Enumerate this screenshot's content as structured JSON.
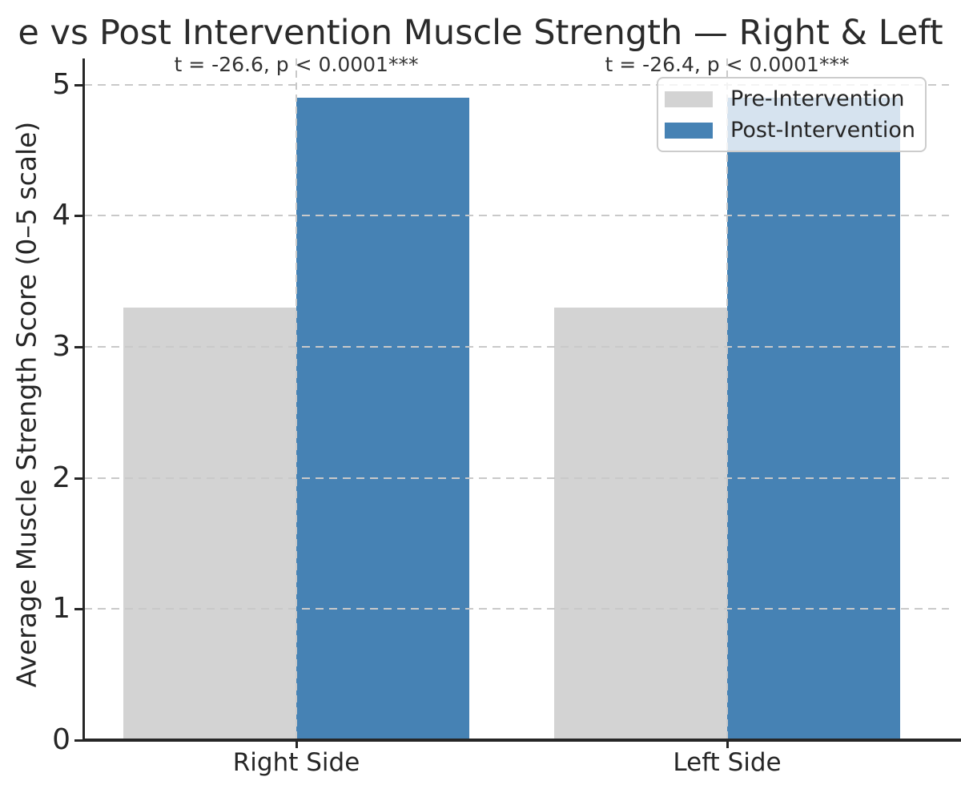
{
  "chart_data": {
    "type": "bar",
    "title": "e vs Post Intervention Muscle Strength — Right & Left",
    "title_note": "title is clipped at both image edges",
    "ylabel": "Average Muscle Strength Score (0–5 scale)",
    "xlabel": "",
    "categories": [
      "Right Side",
      "Left Side"
    ],
    "series": [
      {
        "name": "Pre-Intervention",
        "color": "#d3d3d3",
        "values": [
          3.3,
          3.3
        ]
      },
      {
        "name": "Post-Intervention",
        "color": "#4682b4",
        "values": [
          4.9,
          4.9
        ]
      }
    ],
    "annotations": [
      {
        "text": "t = -26.6, p < 0.0001***",
        "category": "Right Side"
      },
      {
        "text": "t = -26.4, p < 0.0001***",
        "category": "Left Side"
      }
    ],
    "yticks": [
      0,
      1,
      2,
      3,
      4,
      5
    ],
    "ylim": [
      0,
      5.2
    ],
    "grid": {
      "axis": "y",
      "style": "dashed",
      "on_top_of_bars": true
    },
    "group_center_guides": {
      "style": "dashed vertical line",
      "per_category": true
    },
    "legend": {
      "position": "upper right",
      "entries": [
        "Pre-Intervention",
        "Post-Intervention"
      ]
    }
  },
  "colors": {
    "pre_bar": "#d3d3d3",
    "post_bar": "#4682b4",
    "grid": "#c9c9c9",
    "axis": "#262626",
    "text": "#262626",
    "annotation": "#333333",
    "legend_border": "#cccccc",
    "background": "#ffffff"
  }
}
